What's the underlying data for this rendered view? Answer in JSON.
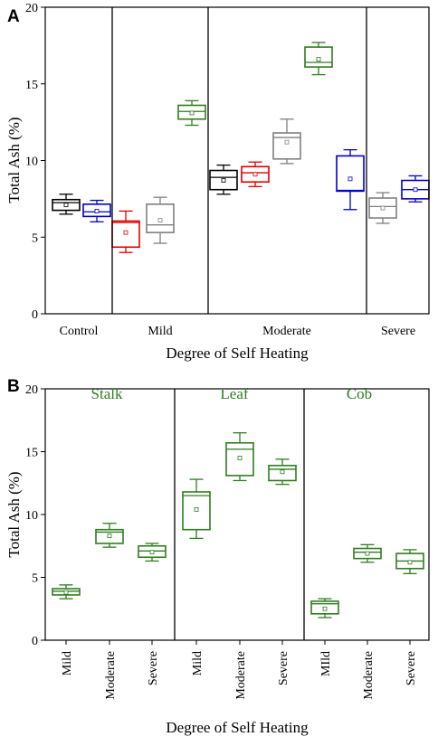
{
  "chart_data": [
    {
      "type": "box",
      "panel_label": "A",
      "xlabel": "Degree of Self Heating",
      "ylabel": "Total Ash (%)",
      "ylim": [
        0,
        20
      ],
      "yticks": [
        0,
        5,
        10,
        15,
        20
      ],
      "categories": [
        "Control",
        "Mild",
        "Moderate",
        "Severe"
      ],
      "boxes": [
        {
          "group": "Control",
          "color": "#000000",
          "min": 6.5,
          "q1": 6.75,
          "median": 7.25,
          "q3": 7.45,
          "max": 7.8,
          "mean": 7.1
        },
        {
          "group": "Control",
          "color": "#0000cc",
          "min": 6.0,
          "q1": 6.35,
          "median": 6.65,
          "q3": 7.15,
          "max": 7.4,
          "mean": 6.7
        },
        {
          "group": "Mild",
          "color": "#dd0000",
          "min": 4.0,
          "q1": 4.35,
          "median": 5.95,
          "q3": 6.05,
          "max": 6.7,
          "mean": 5.3
        },
        {
          "group": "Mild",
          "color": "#808080",
          "min": 4.6,
          "q1": 5.3,
          "median": 5.8,
          "q3": 7.15,
          "max": 7.6,
          "mean": 6.1
        },
        {
          "group": "Mild",
          "color": "#2e7d1f",
          "min": 12.3,
          "q1": 12.7,
          "median": 13.2,
          "q3": 13.6,
          "max": 13.9,
          "mean": 13.1
        },
        {
          "group": "Moderate",
          "color": "#000000",
          "min": 7.8,
          "q1": 8.1,
          "median": 8.9,
          "q3": 9.35,
          "max": 9.7,
          "mean": 8.7
        },
        {
          "group": "Moderate",
          "color": "#dd0000",
          "min": 8.3,
          "q1": 8.6,
          "median": 9.2,
          "q3": 9.6,
          "max": 9.9,
          "mean": 9.1
        },
        {
          "group": "Moderate",
          "color": "#808080",
          "min": 9.8,
          "q1": 10.1,
          "median": 11.5,
          "q3": 11.8,
          "max": 12.7,
          "mean": 11.2
        },
        {
          "group": "Moderate",
          "color": "#2e7d1f",
          "min": 15.6,
          "q1": 16.1,
          "median": 16.4,
          "q3": 17.4,
          "max": 17.7,
          "mean": 16.6
        },
        {
          "group": "Moderate",
          "color": "#0000cc",
          "min": 6.8,
          "q1": 8.0,
          "median": 8.05,
          "q3": 10.3,
          "max": 10.7,
          "mean": 8.8
        },
        {
          "group": "Severe",
          "color": "#808080",
          "min": 5.9,
          "q1": 6.25,
          "median": 7.0,
          "q3": 7.55,
          "max": 7.9,
          "mean": 6.9
        },
        {
          "group": "Severe",
          "color": "#0000cc",
          "min": 7.3,
          "q1": 7.5,
          "median": 8.1,
          "q3": 8.7,
          "max": 9.0,
          "mean": 8.1
        }
      ]
    },
    {
      "type": "box",
      "panel_label": "B",
      "xlabel": "Degree of Self Heating",
      "ylabel": "Total Ash (%)",
      "ylim": [
        0,
        20
      ],
      "yticks": [
        0,
        5,
        10,
        15,
        20
      ],
      "groups": [
        "Stalk",
        "Leaf",
        "Cob"
      ],
      "categories": [
        "Mild",
        "Moderate",
        "Severe",
        "Mild",
        "Moderate",
        "Severe",
        "MIld",
        "Moderate",
        "Severe"
      ],
      "boxes": [
        {
          "group": "Stalk",
          "category": "Mild",
          "color": "#2e7d1f",
          "min": 3.3,
          "q1": 3.6,
          "median": 3.9,
          "q3": 4.1,
          "max": 4.4,
          "mean": 3.8
        },
        {
          "group": "Stalk",
          "category": "Moderate",
          "color": "#2e7d1f",
          "min": 7.4,
          "q1": 7.7,
          "median": 8.6,
          "q3": 8.8,
          "max": 9.3,
          "mean": 8.3
        },
        {
          "group": "Stalk",
          "category": "Severe",
          "color": "#2e7d1f",
          "min": 6.3,
          "q1": 6.6,
          "median": 7.1,
          "q3": 7.5,
          "max": 7.7,
          "mean": 7.0
        },
        {
          "group": "Leaf",
          "category": "Mild",
          "color": "#2e7d1f",
          "min": 8.1,
          "q1": 8.8,
          "median": 11.5,
          "q3": 11.8,
          "max": 12.8,
          "mean": 10.4
        },
        {
          "group": "Leaf",
          "category": "Moderate",
          "color": "#2e7d1f",
          "min": 12.7,
          "q1": 13.1,
          "median": 15.2,
          "q3": 15.7,
          "max": 16.5,
          "mean": 14.5
        },
        {
          "group": "Leaf",
          "category": "Severe",
          "color": "#2e7d1f",
          "min": 12.4,
          "q1": 12.7,
          "median": 13.6,
          "q3": 13.9,
          "max": 14.4,
          "mean": 13.4
        },
        {
          "group": "Cob",
          "category": "MIld",
          "color": "#2e7d1f",
          "min": 1.8,
          "q1": 2.1,
          "median": 2.9,
          "q3": 3.1,
          "max": 3.3,
          "mean": 2.5
        },
        {
          "group": "Cob",
          "category": "Moderate",
          "color": "#2e7d1f",
          "min": 6.2,
          "q1": 6.5,
          "median": 7.0,
          "q3": 7.3,
          "max": 7.6,
          "mean": 6.9
        },
        {
          "group": "Cob",
          "category": "Severe",
          "color": "#2e7d1f",
          "min": 5.3,
          "q1": 5.7,
          "median": 6.3,
          "q3": 6.9,
          "max": 7.2,
          "mean": 6.2
        }
      ]
    }
  ]
}
